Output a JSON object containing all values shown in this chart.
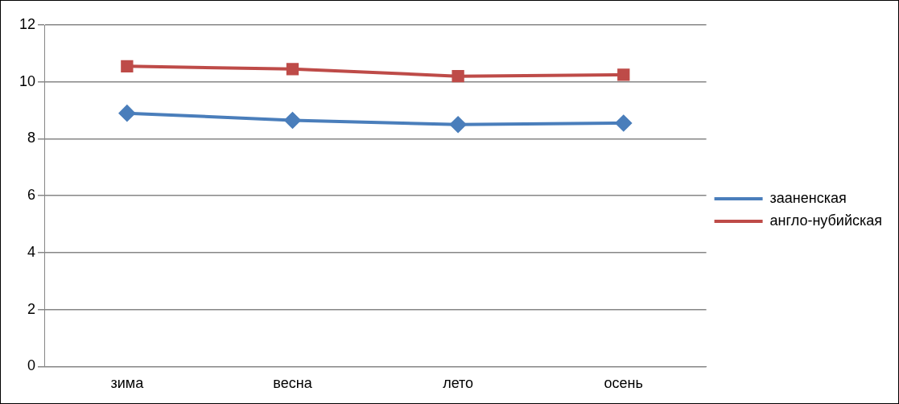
{
  "chart_data": {
    "type": "line",
    "categories": [
      "зима",
      "весна",
      "лето",
      "осень"
    ],
    "series": [
      {
        "name": "зааненская",
        "color": "#4a7ebb",
        "values": [
          8.9,
          8.65,
          8.5,
          8.55
        ]
      },
      {
        "name": "англо-нубийская",
        "color": "#be4b48",
        "values": [
          10.55,
          10.45,
          10.2,
          10.25
        ],
        "marker": "square"
      }
    ],
    "ylim": [
      0,
      12
    ],
    "yticks": [
      0,
      2,
      4,
      6,
      8,
      10,
      12
    ],
    "grid": "y",
    "legend": "right",
    "marker": "diamond"
  }
}
